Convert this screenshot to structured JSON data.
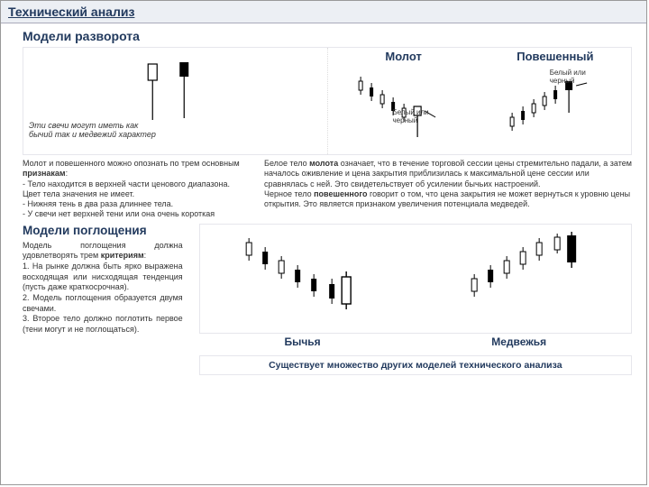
{
  "title": "Технический анализ",
  "section1": "Модели разворота",
  "hammer_title": "Молот",
  "hanged_title": "Повешенный",
  "caption_left": "Эти свечи могут иметь как бычий так и медвежий характер",
  "caption_mid": "Белый или черный",
  "caption_right": "Белый или черный",
  "desc_left": "Молот и повешенного можно опознать по трем основным признакам:\n- Тело находится в верхней части ценового диапазона. Цвет тела значения не имеет.\n- Нижняя тень в два раза длиннее тела.\n- У свечи нет верхней тени или она очень короткая",
  "desc_left_bold": "признакам",
  "desc_right": "Белое тело молота означает, что в течение торговой сессии цены стремительно падали, а затем началось оживление и цена закрытия приблизилась к максимальной цене сессии или сравнялась с ней. Это свидетельствует об усилении бычьих настроений.\nЧерное тело повешенного говорит о том, что цена закрытия не может вернуться к уровню цены открытия. Это является признаком увеличения потенциала медведей.",
  "desc_right_bold1": "молота",
  "desc_right_bold2": "повешенного",
  "section2": "Модели поглощения",
  "engulf_text": "Модель поглощения должна удовлетворять трем критериям:\n1. На рынке должна быть ярко выражена восходящая или нисходящая тенденция (пусть даже краткосрочная).\n2. Модель поглощения образуется двумя свечами.\n3. Второе тело должно поглотить первое (тени могут и не поглощаться).",
  "engulf_bold": "критериям",
  "bullish": "Бычья",
  "bearish": "Медвежья",
  "bottom_note": "Существует множество других моделей технического анализа",
  "colors": {
    "navy": "#223a5e",
    "border": "#e6e6ec",
    "black": "#000",
    "white": "#fff"
  }
}
